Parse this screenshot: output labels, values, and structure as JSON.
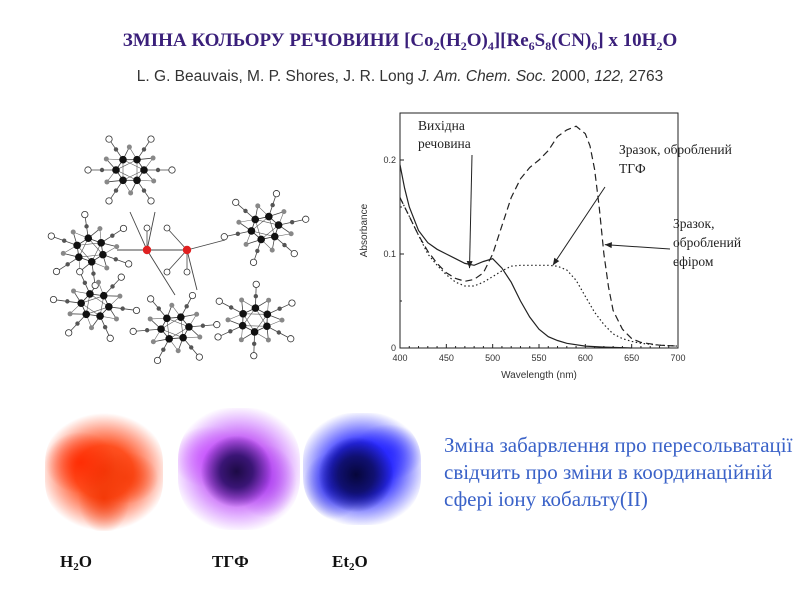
{
  "slide": {
    "title": {
      "parts": [
        {
          "t": "ЗМІНА КОЛЬОРУ РЕЧОВИНИ [Co"
        },
        {
          "t": "2",
          "sub": true
        },
        {
          "t": "(H"
        },
        {
          "t": "2",
          "sub": true
        },
        {
          "t": "O)"
        },
        {
          "t": "4",
          "sub": true
        },
        {
          "t": "][Re"
        },
        {
          "t": "6",
          "sub": true
        },
        {
          "t": "S"
        },
        {
          "t": "8",
          "sub": true
        },
        {
          "t": "(CN)"
        },
        {
          "t": "6",
          "sub": true
        },
        {
          "t": "] x 10H"
        },
        {
          "t": "2",
          "sub": true
        },
        {
          "t": "O"
        }
      ]
    },
    "citation": {
      "authors": "L. G. Beauvais, M. P. Shores, J. R. Long ",
      "journal": "J. Am. Chem. Soc.",
      "year": " 2000, ",
      "volume": "122,",
      "pages": " 2763"
    },
    "conclusion": "Зміна забарвлення про пересольватації свідчить про зміни в координаційній сфері іону кобальту(II)",
    "samples": [
      {
        "id": "h2o",
        "label_main": "H",
        "label_sub": "2",
        "label_end": "O",
        "color": "#f03a0a"
      },
      {
        "id": "thf",
        "label_main": "ТГФ",
        "label_sub": "",
        "label_end": "",
        "color": "#9a3be0"
      },
      {
        "id": "et2o",
        "label_main": "Et",
        "label_sub": "2",
        "label_end": "O",
        "color": "#1515d0"
      }
    ],
    "colors": {
      "title": "#3a1f7a",
      "conclusion": "#3a62c8",
      "cobalt_atom": "#e02020"
    }
  },
  "chart_data": {
    "type": "line",
    "xlabel": "Wavelength (nm)",
    "ylabel": "Absorbance",
    "xlim": [
      400,
      700
    ],
    "ylim": [
      0,
      0.25
    ],
    "xticks": [
      400,
      450,
      500,
      550,
      600,
      650,
      700
    ],
    "yticks": [
      0,
      0.1,
      0.2
    ],
    "ytick_labels": [
      "0",
      "0.1",
      "0.2"
    ],
    "grid": false,
    "series": [
      {
        "id": "solid",
        "style": "solid",
        "x": [
          400,
          405,
          410,
          420,
          430,
          440,
          450,
          460,
          470,
          480,
          490,
          500,
          510,
          520,
          530,
          540,
          550,
          560,
          570,
          580,
          600,
          620,
          650
        ],
        "y": [
          0.195,
          0.17,
          0.15,
          0.125,
          0.112,
          0.105,
          0.1,
          0.095,
          0.09,
          0.088,
          0.092,
          0.095,
          0.085,
          0.07,
          0.05,
          0.033,
          0.02,
          0.012,
          0.008,
          0.005,
          0.002,
          0.001,
          0
        ]
      },
      {
        "id": "dotted",
        "style": "dotted",
        "x": [
          400,
          410,
          420,
          430,
          440,
          450,
          460,
          470,
          480,
          490,
          500,
          510,
          520,
          530,
          540,
          550,
          560,
          570,
          580,
          590,
          600,
          610,
          620,
          630,
          640,
          650,
          660,
          680,
          700
        ],
        "y": [
          0.16,
          0.14,
          0.12,
          0.1,
          0.088,
          0.078,
          0.07,
          0.066,
          0.066,
          0.07,
          0.076,
          0.082,
          0.087,
          0.088,
          0.088,
          0.088,
          0.088,
          0.087,
          0.083,
          0.072,
          0.055,
          0.038,
          0.025,
          0.015,
          0.01,
          0.007,
          0.005,
          0.003,
          0.002
        ]
      },
      {
        "id": "dashed",
        "style": "dashed",
        "x": [
          400,
          410,
          420,
          430,
          440,
          450,
          460,
          470,
          480,
          490,
          500,
          510,
          520,
          530,
          540,
          550,
          560,
          570,
          580,
          590,
          600,
          605,
          610,
          615,
          620,
          625,
          630,
          640,
          650,
          660,
          680,
          700
        ],
        "y": [
          0.16,
          0.14,
          0.12,
          0.103,
          0.09,
          0.08,
          0.074,
          0.071,
          0.073,
          0.08,
          0.1,
          0.13,
          0.16,
          0.18,
          0.192,
          0.2,
          0.21,
          0.225,
          0.232,
          0.236,
          0.228,
          0.215,
          0.19,
          0.15,
          0.1,
          0.065,
          0.04,
          0.02,
          0.01,
          0.006,
          0.003,
          0.002
        ]
      }
    ],
    "annotations": [
      {
        "id": "ann-start",
        "lines": [
          "Вихідна",
          "речовина"
        ],
        "points_to": "solid"
      },
      {
        "id": "ann-thf",
        "lines": [
          "Зразок, оброблений",
          "ТГФ"
        ],
        "points_to": "dotted"
      },
      {
        "id": "ann-ether",
        "lines": [
          "Зразок,",
          "оброблений",
          "ефіром"
        ],
        "points_to": "dashed"
      }
    ]
  }
}
